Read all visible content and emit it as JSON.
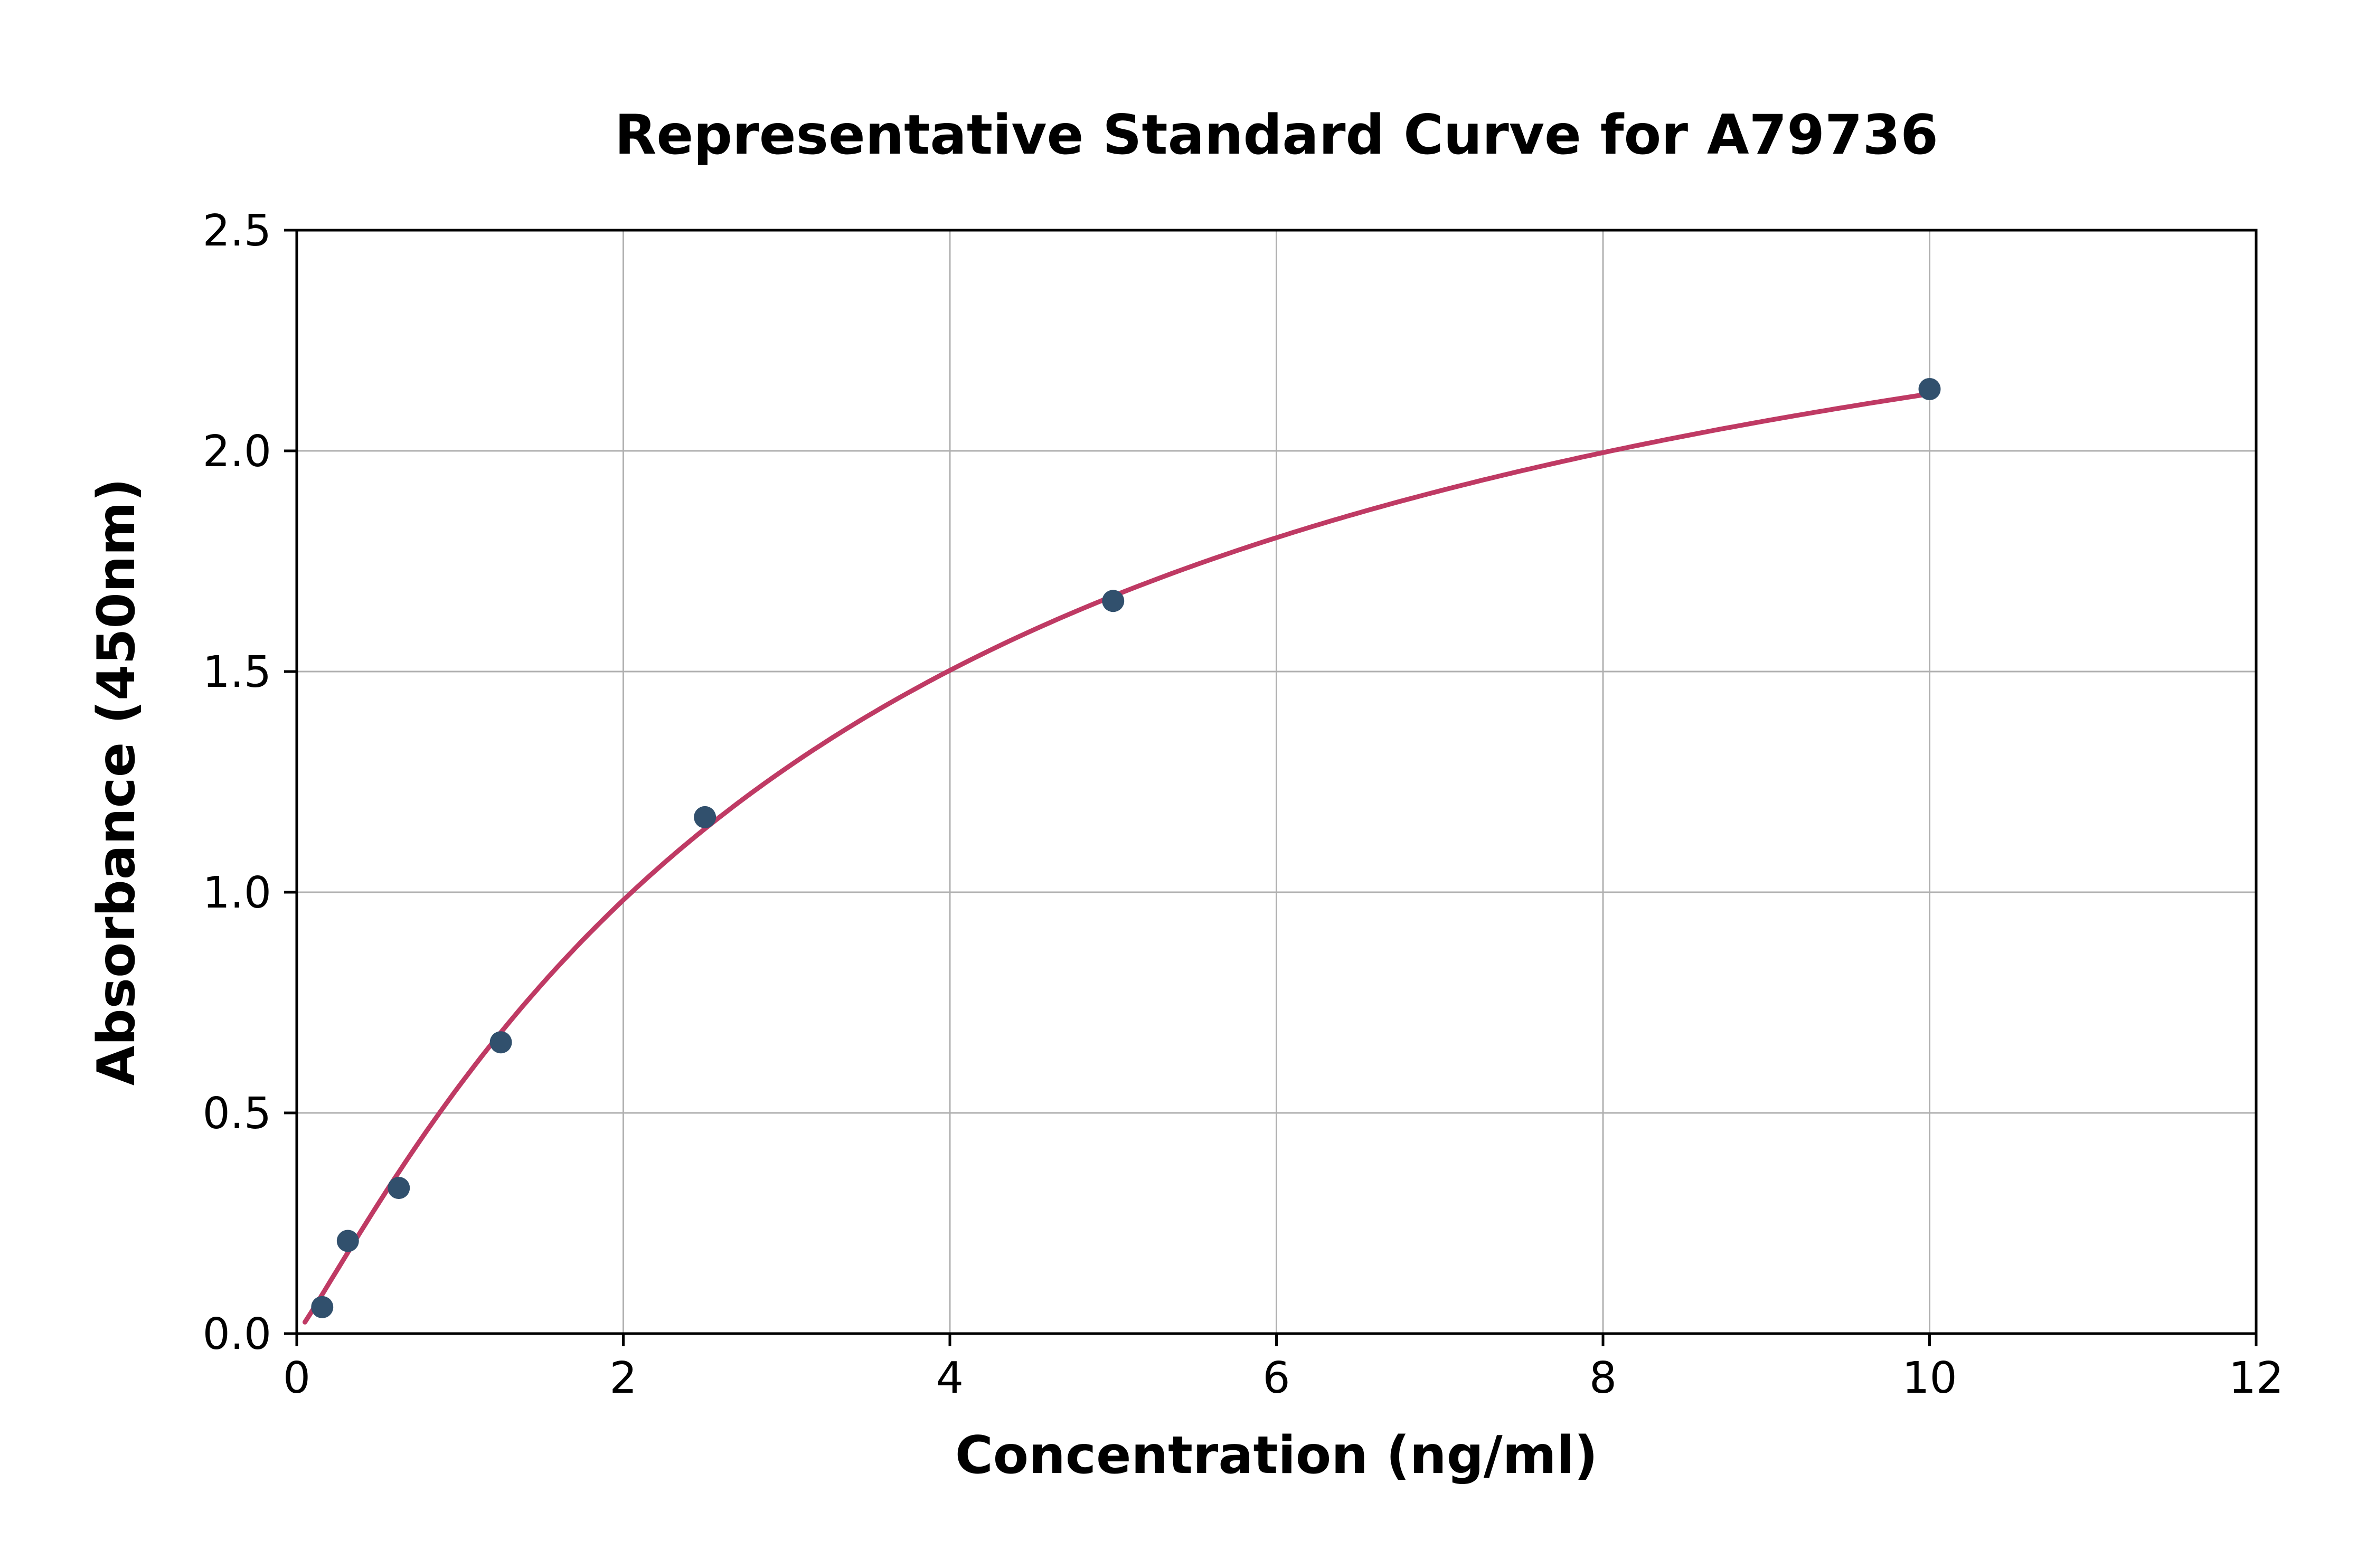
{
  "chart_data": {
    "type": "scatter",
    "title": "Representative Standard Curve for A79736",
    "xlabel": "Concentration (ng/ml)",
    "ylabel": "Absorbance (450nm)",
    "xlim": [
      0,
      12
    ],
    "ylim": [
      0,
      2.5
    ],
    "x_ticks": [
      0,
      2,
      4,
      6,
      8,
      10,
      12
    ],
    "x_tick_labels": [
      "0",
      "2",
      "4",
      "6",
      "8",
      "10",
      "12"
    ],
    "y_ticks": [
      0.0,
      0.5,
      1.0,
      1.5,
      2.0,
      2.5
    ],
    "y_tick_labels": [
      "0.0",
      "0.5",
      "1.0",
      "1.5",
      "2.0",
      "2.5"
    ],
    "grid": true,
    "legend": "none",
    "points": [
      {
        "x": 0.156,
        "y": 0.06
      },
      {
        "x": 0.313,
        "y": 0.21
      },
      {
        "x": 0.625,
        "y": 0.33
      },
      {
        "x": 1.25,
        "y": 0.66
      },
      {
        "x": 2.5,
        "y": 1.17
      },
      {
        "x": 5.0,
        "y": 1.66
      },
      {
        "x": 10.0,
        "y": 2.14
      }
    ],
    "fit_curve": {
      "model": "4PL",
      "a": 0.0,
      "b": 1.1,
      "c": 3.5,
      "d": 2.8,
      "x_start": 0.05,
      "x_end": 10.0
    },
    "colors": {
      "curve": "#bf3a64",
      "points": "#31506d",
      "grid": "#b0b0b0",
      "axes": "#000000",
      "background": "#ffffff"
    }
  }
}
